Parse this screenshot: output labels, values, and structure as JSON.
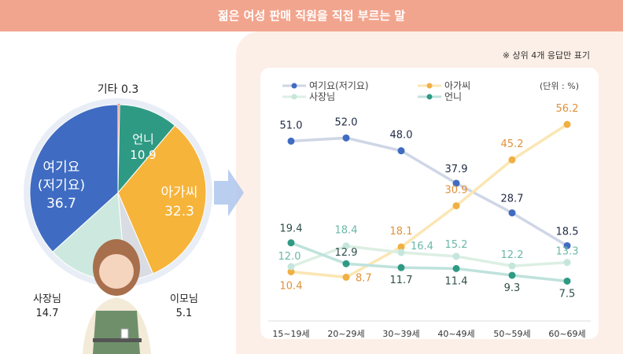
{
  "title": "젊은 여성 판매 직원을 직접 부르는 말",
  "note": "※ 상위 4개 응답만 표기",
  "unit": "(단위 : %)",
  "chart_data": [
    {
      "type": "pie",
      "title": "",
      "slices": [
        {
          "label": "기타",
          "value": 0.3,
          "color": "#e07a5f"
        },
        {
          "label": "언니",
          "value": 10.9,
          "color": "#2f9a84"
        },
        {
          "label": "아가씨",
          "value": 32.3,
          "color": "#f6b43a"
        },
        {
          "label": "이모님",
          "value": 5.1,
          "color": "#d9dde3"
        },
        {
          "label": "사장님",
          "value": 14.7,
          "color": "#cde9df"
        },
        {
          "label": "여기요 (저기요)",
          "value": 36.7,
          "color": "#3f6cc2"
        }
      ]
    },
    {
      "type": "line",
      "categories": [
        "15~19세",
        "20~29세",
        "30~39세",
        "40~49세",
        "50~59세",
        "60~69세"
      ],
      "ylim": [
        0,
        60
      ],
      "legend": "top",
      "series": [
        {
          "name": "여기요(저기요)",
          "values": [
            51.0,
            52.0,
            48.0,
            37.9,
            28.7,
            18.5
          ],
          "color": "#3f6cc2",
          "line": "#cfd6e6",
          "label_color": "#1e2a44"
        },
        {
          "name": "아가씨",
          "values": [
            10.4,
            8.7,
            18.1,
            30.9,
            45.2,
            56.2
          ],
          "color": "#f0b043",
          "line": "#fbe6b3",
          "label_color": "#e0913a"
        },
        {
          "name": "사장님",
          "values": [
            12.0,
            18.4,
            16.4,
            15.2,
            12.2,
            13.3
          ],
          "color": "#c5e6dc",
          "line": "#dcefe3",
          "label_color": "#6bb8a8"
        },
        {
          "name": "언니",
          "values": [
            19.4,
            12.9,
            11.7,
            11.4,
            9.3,
            7.5
          ],
          "color": "#2f9a84",
          "line": "#bfe2dc",
          "label_color": "#2f4f4a"
        }
      ]
    }
  ]
}
